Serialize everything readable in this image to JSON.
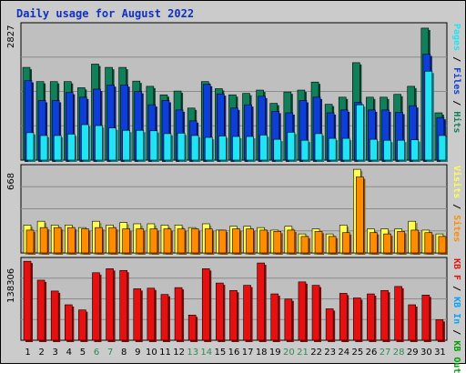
{
  "title": "Daily usage for August 2022",
  "colors": {
    "background": "#cbcbcb",
    "panel": "#bfbfbf",
    "hits": "#10805a",
    "files": "#0e3ed8",
    "pages": "#20e4f4",
    "visits": "#ffff50",
    "sites": "#ff8c00",
    "kbin": "#00a3ff",
    "kbout": "#00a000",
    "kbf": "#e61010",
    "weekend_label": "#2f8a55",
    "weekday_label": "#000000"
  },
  "chart_data": [
    {
      "type": "bar",
      "y_max_label": "2827",
      "ylim": [
        0,
        2827
      ],
      "legend": [
        "Pages",
        "Files",
        "Hits"
      ],
      "legend_colors": [
        "#20e4f4",
        "#0e3ed8",
        "#10805a"
      ],
      "categories": [
        "1",
        "2",
        "3",
        "4",
        "5",
        "6",
        "7",
        "8",
        "9",
        "10",
        "11",
        "12",
        "13",
        "14",
        "15",
        "16",
        "17",
        "18",
        "19",
        "20",
        "21",
        "22",
        "23",
        "24",
        "25",
        "26",
        "27",
        "28",
        "29",
        "30",
        "31"
      ],
      "weekend_days": [
        "6",
        "7",
        "13",
        "14",
        "20",
        "21",
        "27",
        "28"
      ],
      "series": [
        {
          "name": "Hits",
          "values": [
            1960,
            1660,
            1660,
            1660,
            1530,
            2030,
            1960,
            1960,
            1670,
            1560,
            1380,
            1460,
            1100,
            1660,
            1510,
            1380,
            1410,
            1480,
            1200,
            1440,
            1480,
            1650,
            1180,
            1330,
            2060,
            1330,
            1330,
            1390,
            1560,
            2790,
            1000
          ]
        },
        {
          "name": "Files",
          "values": [
            1680,
            1260,
            1260,
            1430,
            1330,
            1500,
            1590,
            1590,
            1450,
            1170,
            1260,
            1060,
            830,
            1600,
            1400,
            1100,
            1170,
            1350,
            1030,
            1000,
            1260,
            1330,
            1000,
            1060,
            1220,
            1060,
            1060,
            1010,
            1150,
            2240,
            900
          ]
        },
        {
          "name": "Pages",
          "values": [
            580,
            520,
            520,
            550,
            750,
            730,
            680,
            630,
            630,
            620,
            560,
            570,
            520,
            480,
            510,
            500,
            500,
            530,
            440,
            590,
            420,
            560,
            460,
            460,
            1170,
            440,
            420,
            420,
            430,
            1880,
            520
          ]
        }
      ]
    },
    {
      "type": "bar",
      "y_max_label": "668",
      "ylim": [
        0,
        668
      ],
      "legend": [
        "Visits",
        "Sites"
      ],
      "legend_colors": [
        "#ffff50",
        "#ff8c00"
      ],
      "categories": [
        "1",
        "2",
        "3",
        "4",
        "5",
        "6",
        "7",
        "8",
        "9",
        "10",
        "11",
        "12",
        "13",
        "14",
        "15",
        "16",
        "17",
        "18",
        "19",
        "20",
        "21",
        "22",
        "23",
        "24",
        "25",
        "26",
        "27",
        "28",
        "29",
        "30",
        "31"
      ],
      "series": [
        {
          "name": "Visits",
          "values": [
            220,
            250,
            220,
            220,
            200,
            250,
            220,
            240,
            230,
            230,
            220,
            220,
            200,
            230,
            180,
            210,
            210,
            200,
            180,
            210,
            150,
            190,
            150,
            220,
            660,
            190,
            190,
            190,
            250,
            180,
            150
          ]
        },
        {
          "name": "Sites",
          "values": [
            180,
            200,
            200,
            200,
            190,
            200,
            200,
            190,
            190,
            190,
            190,
            190,
            190,
            190,
            180,
            190,
            190,
            180,
            170,
            180,
            130,
            170,
            130,
            160,
            600,
            160,
            150,
            170,
            180,
            160,
            130
          ]
        }
      ]
    },
    {
      "type": "bar",
      "y_max_label": "138306",
      "ylim": [
        0,
        138306
      ],
      "legend": [
        "KB F",
        "KB In",
        "KB Out"
      ],
      "legend_colors": [
        "#e61010",
        "#00a3ff",
        "#00a000"
      ],
      "categories": [
        "1",
        "2",
        "3",
        "4",
        "5",
        "6",
        "7",
        "8",
        "9",
        "10",
        "11",
        "12",
        "13",
        "14",
        "15",
        "16",
        "17",
        "18",
        "19",
        "20",
        "21",
        "22",
        "23",
        "24",
        "25",
        "26",
        "27",
        "28",
        "29",
        "30",
        "31"
      ],
      "series": [
        {
          "name": "KB F",
          "values": [
            138000,
            105000,
            86000,
            62000,
            53000,
            118000,
            125000,
            122000,
            90000,
            91000,
            80000,
            92000,
            44000,
            125000,
            100000,
            87000,
            96000,
            135000,
            81000,
            72000,
            102000,
            96000,
            55000,
            82000,
            74000,
            81000,
            87000,
            94000,
            62000,
            79000,
            36000
          ]
        }
      ]
    }
  ]
}
